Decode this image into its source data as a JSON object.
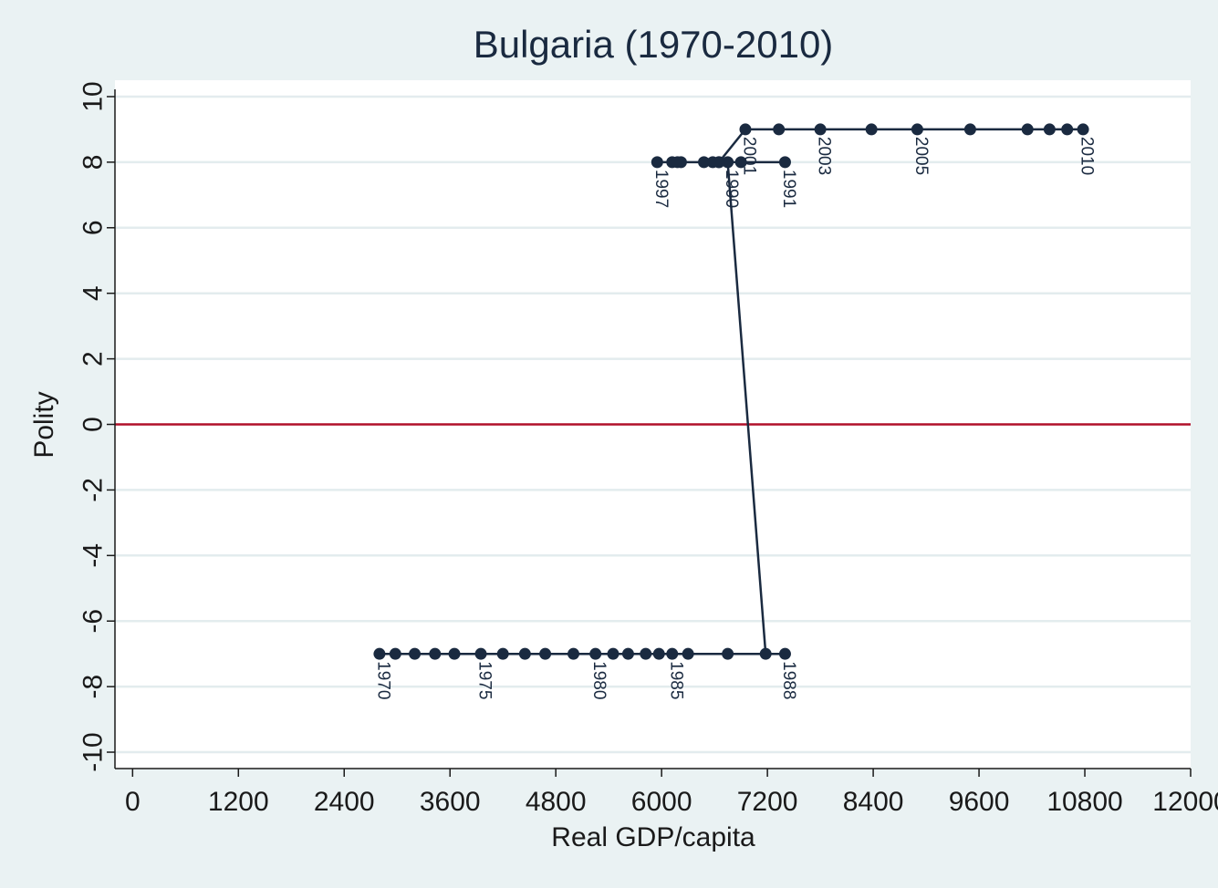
{
  "chart_data": {
    "type": "line",
    "title": "Bulgaria (1970-2010)",
    "xlabel": "Real GDP/capita",
    "ylabel": "Polity",
    "xlim": [
      -200,
      12000
    ],
    "ylim": [
      -10.5,
      10.5
    ],
    "xticks": [
      0,
      1200,
      2400,
      3600,
      4800,
      6000,
      7200,
      8400,
      9600,
      10800,
      12000
    ],
    "yticks": [
      -10,
      -8,
      -6,
      -4,
      -2,
      0,
      2,
      4,
      6,
      8,
      10
    ],
    "grid": true,
    "reference_line": {
      "y": 0,
      "color": "#b0102a"
    },
    "series_color": "#1a2a40",
    "points": [
      {
        "year": 1970,
        "x": 2800,
        "y": -7,
        "label": "1970"
      },
      {
        "year": 1971,
        "x": 2980,
        "y": -7
      },
      {
        "year": 1972,
        "x": 3200,
        "y": -7
      },
      {
        "year": 1973,
        "x": 3430,
        "y": -7
      },
      {
        "year": 1974,
        "x": 3650,
        "y": -7
      },
      {
        "year": 1975,
        "x": 3950,
        "y": -7,
        "label": "1975"
      },
      {
        "year": 1976,
        "x": 4200,
        "y": -7
      },
      {
        "year": 1977,
        "x": 4450,
        "y": -7
      },
      {
        "year": 1978,
        "x": 4680,
        "y": -7
      },
      {
        "year": 1979,
        "x": 5000,
        "y": -7
      },
      {
        "year": 1980,
        "x": 5250,
        "y": -7,
        "label": "1980"
      },
      {
        "year": 1981,
        "x": 5450,
        "y": -7
      },
      {
        "year": 1982,
        "x": 5620,
        "y": -7
      },
      {
        "year": 1983,
        "x": 5820,
        "y": -7
      },
      {
        "year": 1984,
        "x": 5970,
        "y": -7
      },
      {
        "year": 1985,
        "x": 6120,
        "y": -7,
        "label": "1985"
      },
      {
        "year": 1986,
        "x": 6300,
        "y": -7
      },
      {
        "year": 1987,
        "x": 6750,
        "y": -7
      },
      {
        "year": 1988,
        "x": 7400,
        "y": -7,
        "label": "1988"
      },
      {
        "year": 1989,
        "x": 7180,
        "y": -7
      },
      {
        "year": 1990,
        "x": 6750,
        "y": 8,
        "label": "1990"
      },
      {
        "year": 1991,
        "x": 7400,
        "y": 8,
        "label": "1991"
      },
      {
        "year": 1992,
        "x": 6900,
        "y": 8
      },
      {
        "year": 1993,
        "x": 6650,
        "y": 8
      },
      {
        "year": 1994,
        "x": 6580,
        "y": 8
      },
      {
        "year": 1995,
        "x": 6480,
        "y": 8
      },
      {
        "year": 1996,
        "x": 6220,
        "y": 8
      },
      {
        "year": 1997,
        "x": 5950,
        "y": 8,
        "label": "1997"
      },
      {
        "year": 1998,
        "x": 6120,
        "y": 8
      },
      {
        "year": 1999,
        "x": 6180,
        "y": 8
      },
      {
        "year": 2000,
        "x": 6650,
        "y": 8
      },
      {
        "year": 2001,
        "x": 6950,
        "y": 9,
        "label": "2001"
      },
      {
        "year": 2002,
        "x": 7330,
        "y": 9
      },
      {
        "year": 2003,
        "x": 7800,
        "y": 9,
        "label": "2003"
      },
      {
        "year": 2004,
        "x": 8380,
        "y": 9
      },
      {
        "year": 2005,
        "x": 8900,
        "y": 9,
        "label": "2005"
      },
      {
        "year": 2006,
        "x": 9500,
        "y": 9
      },
      {
        "year": 2007,
        "x": 10150,
        "y": 9
      },
      {
        "year": 2008,
        "x": 10400,
        "y": 9
      },
      {
        "year": 2009,
        "x": 10600,
        "y": 9
      },
      {
        "year": 2010,
        "x": 10780,
        "y": 9,
        "label": "2010"
      }
    ]
  }
}
